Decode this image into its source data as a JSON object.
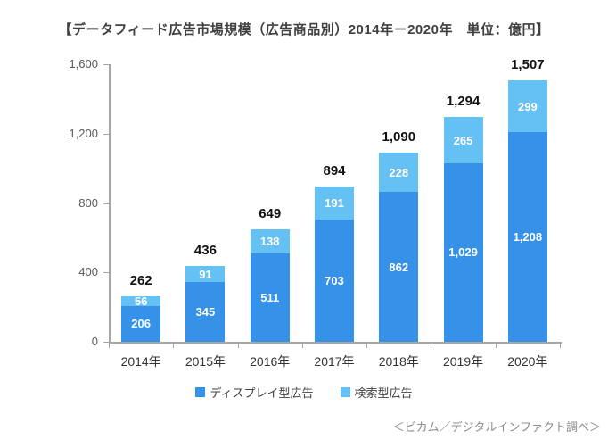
{
  "title": "【データフィード広告市場規模（広告商品別）2014年－2020年　単位：億円】",
  "source_note": "＜ビカム／デジタルインファクト調べ＞",
  "chart_data": {
    "type": "bar",
    "stacked": true,
    "title": "【データフィード広告市場規模（広告商品別）2014年－2020年　単位：億円】",
    "unit": "億円",
    "categories": [
      "2014年",
      "2015年",
      "2016年",
      "2017年",
      "2018年",
      "2019年",
      "2020年"
    ],
    "series": [
      {
        "name": "ディスプレイ型広告",
        "color": "#3692E9",
        "values": [
          206,
          345,
          511,
          703,
          862,
          1029,
          1208
        ]
      },
      {
        "name": "検索型広告",
        "color": "#65C1F3",
        "values": [
          56,
          91,
          138,
          191,
          228,
          265,
          299
        ]
      }
    ],
    "totals": [
      262,
      436,
      649,
      894,
      1090,
      1294,
      1507
    ],
    "xlabel": "",
    "ylabel": "",
    "ylim": [
      0,
      1600
    ],
    "yticks": [
      0,
      400,
      800,
      1200,
      1600
    ],
    "ytick_labels": [
      "0",
      "400",
      "800",
      "1,200",
      "1,600"
    ],
    "grid": false,
    "legend_position": "bottom",
    "colors": {
      "axis": "#a6a6a6",
      "ytick_text": "#595959",
      "xtick_text": "#333333",
      "total_text": "#111111",
      "segment_text": "#ffffff",
      "title_text": "#404040",
      "source_text": "#8c8c8c"
    }
  }
}
